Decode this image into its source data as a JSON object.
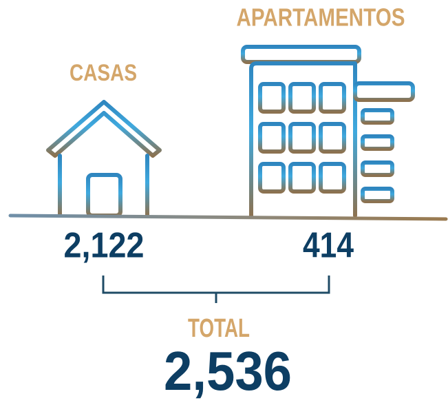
{
  "items": [
    {
      "label": "CASAS",
      "value": "2,122"
    },
    {
      "label": "APARTAMENTOS",
      "value": "414"
    }
  ],
  "total": {
    "label": "TOTAL",
    "value": "2,536"
  }
}
